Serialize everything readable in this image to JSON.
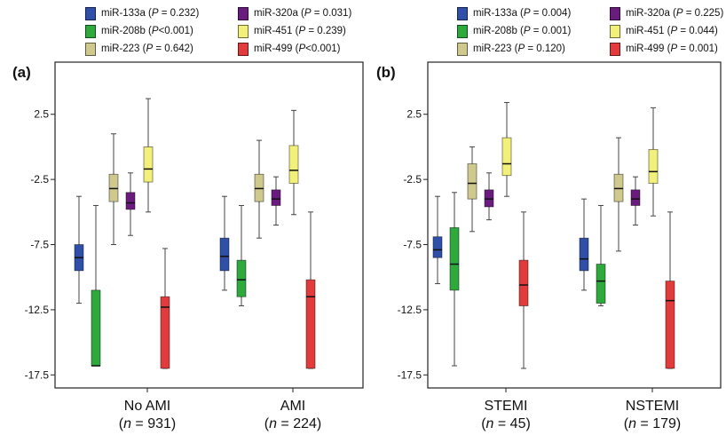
{
  "colors": {
    "miR-133a": "#2f4fa8",
    "miR-208b": "#2eaa3c",
    "miR-223": "#cfc98e",
    "miR-320a": "#6a1b7e",
    "miR-451": "#f2f07a",
    "miR-499": "#e23b3b"
  },
  "chart_data": [
    {
      "type": "box",
      "panel_label": "(a)",
      "legend": [
        {
          "name": "miR-133a",
          "pre": " (",
          "p": "P",
          "post": " = 0.232)"
        },
        {
          "name": "miR-320a",
          "pre": " (",
          "p": "P",
          "post": " = 0.031)"
        },
        {
          "name": "miR-208b",
          "pre": " (",
          "p": "P",
          "post": "<0.001)"
        },
        {
          "name": "miR-451",
          "pre": " (",
          "p": "P",
          "post": " = 0.239)"
        },
        {
          "name": "miR-223",
          "pre": " (",
          "p": "P",
          "post": " = 0.642)"
        },
        {
          "name": "miR-499",
          "pre": " (",
          "p": "P",
          "post": "<0.001)"
        }
      ],
      "ylim": [
        -18.5,
        6.5
      ],
      "yticks": [
        "2.5",
        "-2.5",
        "-7.5",
        "-12.5",
        "-17.5"
      ],
      "ytick_values": [
        2.5,
        -2.5,
        -7.5,
        -12.5,
        -17.5
      ],
      "groups": [
        {
          "label": "No AMI",
          "n_label": "(",
          "n_italic": "n",
          "n_value": " = 931)",
          "boxes": [
            {
              "series": "miR-133a",
              "whisker_low": -12.0,
              "q1": -9.5,
              "median": -8.5,
              "q3": -7.5,
              "whisker_high": -3.8
            },
            {
              "series": "miR-208b",
              "whisker_low": -16.8,
              "q1": -16.8,
              "median": -16.8,
              "q3": -11.0,
              "whisker_high": -4.5
            },
            {
              "series": "miR-223",
              "whisker_low": -7.5,
              "q1": -4.2,
              "median": -3.2,
              "q3": -2.1,
              "whisker_high": 1.0
            },
            {
              "series": "miR-320a",
              "whisker_low": -6.8,
              "q1": -4.8,
              "median": -4.3,
              "q3": -3.5,
              "whisker_high": -2.0
            },
            {
              "series": "miR-451",
              "whisker_low": -5.0,
              "q1": -2.7,
              "median": -1.7,
              "q3": 0.0,
              "whisker_high": 3.7
            },
            {
              "series": "miR-499",
              "whisker_low": -17.0,
              "q1": -17.0,
              "median": -12.3,
              "q3": -11.5,
              "whisker_high": -7.8
            }
          ]
        },
        {
          "label": "AMI",
          "n_label": "(",
          "n_italic": "n",
          "n_value": " = 224)",
          "boxes": [
            {
              "series": "miR-133a",
              "whisker_low": -11.0,
              "q1": -9.5,
              "median": -8.4,
              "q3": -7.0,
              "whisker_high": -3.8
            },
            {
              "series": "miR-208b",
              "whisker_low": -12.2,
              "q1": -11.5,
              "median": -10.2,
              "q3": -8.7,
              "whisker_high": -4.5
            },
            {
              "series": "miR-223",
              "whisker_low": -7.0,
              "q1": -4.2,
              "median": -3.2,
              "q3": -2.1,
              "whisker_high": 0.5
            },
            {
              "series": "miR-320a",
              "whisker_low": -6.0,
              "q1": -4.5,
              "median": -4.0,
              "q3": -3.3,
              "whisker_high": -2.3
            },
            {
              "series": "miR-451",
              "whisker_low": -5.2,
              "q1": -2.8,
              "median": -1.8,
              "q3": 0.1,
              "whisker_high": 2.8
            },
            {
              "series": "miR-499",
              "whisker_low": -17.0,
              "q1": -17.0,
              "median": -11.5,
              "q3": -10.2,
              "whisker_high": -5.0
            }
          ]
        }
      ]
    },
    {
      "type": "box",
      "panel_label": "(b)",
      "legend": [
        {
          "name": "miR-133a",
          "pre": " (",
          "p": "P",
          "post": " = 0.004)"
        },
        {
          "name": "miR-320a",
          "pre": " (",
          "p": "P",
          "post": " = 0.225)"
        },
        {
          "name": "miR-208b",
          "pre": " (",
          "p": "P",
          "post": " = 0.001)"
        },
        {
          "name": "miR-451",
          "pre": " (",
          "p": "P",
          "post": " = 0.044)"
        },
        {
          "name": "miR-223",
          "pre": " (",
          "p": "P",
          "post": " = 0.120)"
        },
        {
          "name": "miR-499",
          "pre": " (",
          "p": "P",
          "post": " = 0.001)"
        }
      ],
      "ylim": [
        -18.5,
        6.5
      ],
      "yticks": [
        "2.5",
        "-2.5",
        "-7.5",
        "-12.5",
        "-17.5"
      ],
      "ytick_values": [
        2.5,
        -2.5,
        -7.5,
        -12.5,
        -17.5
      ],
      "groups": [
        {
          "label": "STEMI",
          "n_label": "(",
          "n_italic": "n",
          "n_value": " = 45)",
          "boxes": [
            {
              "series": "miR-133a",
              "whisker_low": -10.5,
              "q1": -8.5,
              "median": -7.9,
              "q3": -6.9,
              "whisker_high": -3.8
            },
            {
              "series": "miR-208b",
              "whisker_low": -16.8,
              "q1": -11.0,
              "median": -9.0,
              "q3": -6.2,
              "whisker_high": -3.5
            },
            {
              "series": "miR-223",
              "whisker_low": -6.5,
              "q1": -4.0,
              "median": -2.8,
              "q3": -1.3,
              "whisker_high": 0.0
            },
            {
              "series": "miR-320a",
              "whisker_low": -5.6,
              "q1": -4.6,
              "median": -4.0,
              "q3": -3.3,
              "whisker_high": -2.0
            },
            {
              "series": "miR-451",
              "whisker_low": -3.8,
              "q1": -2.2,
              "median": -1.3,
              "q3": 0.7,
              "whisker_high": 3.4
            },
            {
              "series": "miR-499",
              "whisker_low": -17.0,
              "q1": -12.2,
              "median": -10.6,
              "q3": -8.7,
              "whisker_high": -5.0
            }
          ]
        },
        {
          "label": "NSTEMI",
          "n_label": "(",
          "n_italic": "n",
          "n_value": " = 179)",
          "boxes": [
            {
              "series": "miR-133a",
              "whisker_low": -11.0,
              "q1": -9.5,
              "median": -8.6,
              "q3": -7.0,
              "whisker_high": -4.0
            },
            {
              "series": "miR-208b",
              "whisker_low": -12.2,
              "q1": -12.0,
              "median": -10.3,
              "q3": -9.0,
              "whisker_high": -4.5
            },
            {
              "series": "miR-223",
              "whisker_low": -8.0,
              "q1": -4.2,
              "median": -3.2,
              "q3": -2.1,
              "whisker_high": 0.7
            },
            {
              "series": "miR-320a",
              "whisker_low": -6.0,
              "q1": -4.5,
              "median": -4.0,
              "q3": -3.3,
              "whisker_high": -2.3
            },
            {
              "series": "miR-451",
              "whisker_low": -5.3,
              "q1": -2.8,
              "median": -1.9,
              "q3": -0.2,
              "whisker_high": 3.0
            },
            {
              "series": "miR-499",
              "whisker_low": -17.0,
              "q1": -17.0,
              "median": -11.8,
              "q3": -10.3,
              "whisker_high": -5.0
            }
          ]
        }
      ]
    }
  ]
}
